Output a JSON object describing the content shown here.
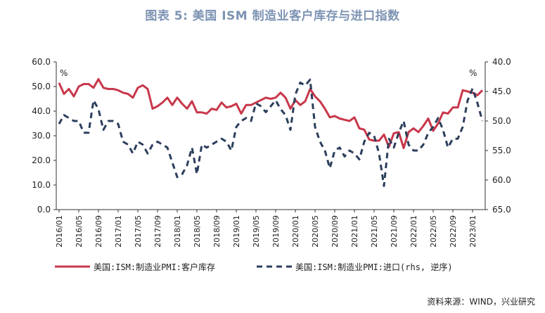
{
  "title": "图表 5:  美国 ISM 制造业客户库存与进口指数",
  "source": "资料来源：WIND，兴业研究",
  "colors": {
    "inventory": "#c8374a",
    "imports": "#2c3e5c"
  },
  "chart_data": {
    "type": "line",
    "x_ticks": [
      "2016/01",
      "2016/05",
      "2016/09",
      "2017/01",
      "2017/05",
      "2017/09",
      "2018/01",
      "2018/05",
      "2018/09",
      "2019/01",
      "2019/05",
      "2019/09",
      "2020/01",
      "2020/05",
      "2020/09",
      "2021/01",
      "2021/05",
      "2021/09",
      "2022/01",
      "2022/05",
      "2022/09",
      "2023/01"
    ],
    "left_axis": {
      "unit": "%",
      "ylim": [
        0,
        60
      ],
      "ticks": [
        "0.0",
        "10.0",
        "20.0",
        "30.0",
        "40.0",
        "50.0",
        "60.0"
      ]
    },
    "right_axis": {
      "unit": "%",
      "ylim": [
        40,
        65
      ],
      "reversed": true,
      "ticks": [
        "40.0",
        "45.0",
        "50.0",
        "55.0",
        "60.0",
        "65.0"
      ]
    },
    "series": [
      {
        "name": "美国:ISM:制造业PMI:客户库存",
        "axis": "left",
        "style": "solid",
        "values": [
          51.5,
          47.0,
          49.0,
          46.0,
          50.0,
          51.0,
          51.0,
          49.5,
          53.0,
          49.5,
          49.0,
          49.0,
          48.5,
          47.5,
          47.0,
          45.5,
          49.5,
          50.5,
          49.0,
          41.0,
          42.0,
          43.5,
          45.5,
          42.5,
          45.5,
          43.0,
          41.0,
          44.0,
          39.5,
          39.5,
          39.0,
          41.0,
          40.5,
          43.5,
          41.5,
          42.0,
          43.0,
          39.0,
          42.5,
          42.5,
          43.5,
          44.5,
          45.5,
          45.0,
          45.5,
          47.5,
          45.5,
          41.0,
          44.5,
          42.5,
          44.0,
          49.0,
          46.0,
          44.0,
          41.0,
          37.5,
          38.0,
          37.0,
          36.5,
          36.0,
          37.5,
          33.0,
          32.5,
          28.5,
          28.0,
          28.0,
          30.5,
          25.5,
          31.0,
          31.5,
          25.0,
          31.5,
          33.0,
          31.5,
          34.0,
          37.0,
          32.0,
          35.0,
          39.5,
          39.0,
          41.5,
          41.5,
          48.5,
          48.0,
          47.5,
          46.5,
          48.5
        ]
      },
      {
        "name": "美国:ISM:制造业PMI:进口(rhs, 逆序)",
        "axis": "right",
        "style": "dashed",
        "values": [
          50.5,
          49.0,
          49.5,
          50.0,
          50.0,
          52.0,
          52.0,
          46.5,
          48.0,
          51.5,
          50.0,
          50.0,
          50.5,
          53.5,
          54.0,
          55.5,
          53.5,
          54.0,
          55.5,
          54.0,
          53.5,
          54.0,
          54.5,
          57.0,
          59.5,
          59.0,
          57.5,
          54.5,
          59.0,
          54.0,
          54.5,
          54.0,
          53.5,
          53.0,
          53.5,
          55.0,
          51.0,
          50.0,
          49.5,
          50.0,
          47.0,
          47.5,
          48.5,
          47.5,
          46.5,
          48.0,
          49.0,
          51.5,
          45.5,
          43.5,
          44.0,
          43.0,
          51.0,
          53.5,
          55.0,
          58.0,
          55.0,
          54.5,
          56.0,
          55.0,
          55.5,
          56.5,
          53.5,
          52.0,
          52.5,
          55.5,
          61.0,
          53.0,
          54.5,
          52.0,
          50.0,
          54.0,
          55.0,
          55.0,
          54.0,
          52.0,
          51.0,
          49.5,
          51.5,
          54.5,
          53.0,
          53.0,
          51.0,
          46.5,
          44.5,
          47.0,
          50.0
        ]
      }
    ]
  }
}
